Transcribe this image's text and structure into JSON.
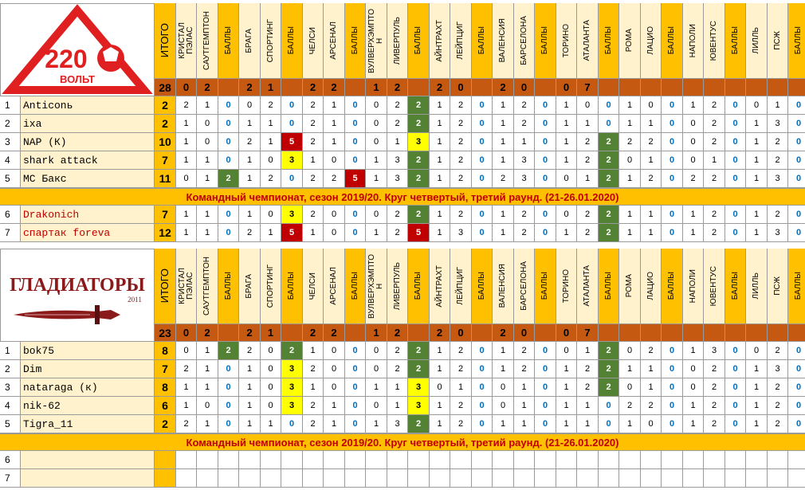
{
  "colors": {
    "orange": "#ffc000",
    "pale": "#fff2cc",
    "header_brown": "#c65911",
    "totals_text": "#000000",
    "green": "#548235",
    "yellow": "#ffff00",
    "red": "#c00000",
    "blue_text": "#0070c0",
    "banner_text": "#c00000"
  },
  "columns": [
    {
      "label": "ИТОГО",
      "type": "itogo"
    },
    {
      "label": "КРИСТАЛ\nПЭЛАС",
      "type": "team"
    },
    {
      "label": "САУТГЕМПТОН",
      "type": "team"
    },
    {
      "label": "БАЛЛЫ",
      "type": "points"
    },
    {
      "label": "БРАГА",
      "type": "team"
    },
    {
      "label": "СПОРТИНГ",
      "type": "team"
    },
    {
      "label": "БАЛЛЫ",
      "type": "points"
    },
    {
      "label": "ЧЕЛСИ",
      "type": "team"
    },
    {
      "label": "АРСЕНАЛ",
      "type": "team"
    },
    {
      "label": "БАЛЛЫ",
      "type": "points"
    },
    {
      "label": "ВУЛВЕРХЭМПТО\nН",
      "type": "team"
    },
    {
      "label": "ЛИВЕРПУЛЬ",
      "type": "team"
    },
    {
      "label": "БАЛЛЫ",
      "type": "points"
    },
    {
      "label": "АЙНТРАХТ",
      "type": "team"
    },
    {
      "label": "ЛЕЙПЦИГ",
      "type": "team"
    },
    {
      "label": "БАЛЛЫ",
      "type": "points"
    },
    {
      "label": "ВАЛЕНСИЯ",
      "type": "team"
    },
    {
      "label": "БАРСЕЛОНА",
      "type": "team"
    },
    {
      "label": "БАЛЛЫ",
      "type": "points"
    },
    {
      "label": "ТОРИНО",
      "type": "team"
    },
    {
      "label": "АТАЛАНТА",
      "type": "team"
    },
    {
      "label": "БАЛЛЫ",
      "type": "points"
    },
    {
      "label": "РОМА",
      "type": "team"
    },
    {
      "label": "ЛАЦИО",
      "type": "team"
    },
    {
      "label": "БАЛЛЫ",
      "type": "points"
    },
    {
      "label": "НАПОЛИ",
      "type": "team"
    },
    {
      "label": "ЮВЕНТУС",
      "type": "team"
    },
    {
      "label": "БАЛЛЫ",
      "type": "points"
    },
    {
      "label": "ЛИЛЛЬ",
      "type": "team"
    },
    {
      "label": "ПСЖ",
      "type": "team"
    },
    {
      "label": "БАЛЛЫ",
      "type": "points"
    }
  ],
  "banner_text": "Командный чемпионат, сезон 2019/20. Круг четвертый, третий раунд. (21-26.01.2020)",
  "sections": [
    {
      "logo": {
        "text": "220",
        "subtext": "ВОЛЬТ"
      },
      "totals": [
        "28",
        "0",
        "2",
        "",
        "2",
        "1",
        "",
        "2",
        "2",
        "",
        "1",
        "2",
        "",
        "2",
        "0",
        "",
        "2",
        "0",
        "",
        "0",
        "7",
        "",
        "",
        "",
        "",
        "",
        "",
        "",
        "",
        "",
        ""
      ],
      "players": [
        {
          "idx": "1",
          "name": "Anticonь",
          "name_color": "#000000",
          "cells": [
            "2",
            "2",
            "1",
            "0",
            "0",
            "2",
            "0",
            "2",
            "1",
            "0",
            "0",
            "2",
            "2",
            "1",
            "2",
            "0",
            "1",
            "2",
            "0",
            "1",
            "0",
            "0",
            "1",
            "0",
            "0",
            "1",
            "2",
            "0",
            "0",
            "1",
            "0"
          ],
          "hl": {
            "12": "green"
          }
        },
        {
          "idx": "2",
          "name": "ixa",
          "name_color": "#000000",
          "cells": [
            "2",
            "1",
            "0",
            "0",
            "1",
            "1",
            "0",
            "2",
            "1",
            "0",
            "0",
            "2",
            "2",
            "1",
            "2",
            "0",
            "1",
            "2",
            "0",
            "1",
            "1",
            "0",
            "1",
            "1",
            "0",
            "0",
            "2",
            "0",
            "1",
            "3",
            "0"
          ],
          "hl": {
            "12": "green"
          }
        },
        {
          "idx": "3",
          "name": "NAP (К)",
          "name_color": "#000000",
          "cells": [
            "10",
            "1",
            "0",
            "0",
            "2",
            "1",
            "5",
            "2",
            "1",
            "0",
            "0",
            "1",
            "3",
            "1",
            "2",
            "0",
            "1",
            "1",
            "0",
            "1",
            "2",
            "2",
            "2",
            "2",
            "0",
            "0",
            "2",
            "0",
            "1",
            "2",
            "0"
          ],
          "hl": {
            "6": "red",
            "12": "yellow",
            "21": "green"
          }
        },
        {
          "idx": "4",
          "name": "shark attack",
          "name_color": "#000000",
          "cells": [
            "7",
            "1",
            "1",
            "0",
            "1",
            "0",
            "3",
            "1",
            "0",
            "0",
            "1",
            "3",
            "2",
            "1",
            "2",
            "0",
            "1",
            "3",
            "0",
            "1",
            "2",
            "2",
            "0",
            "1",
            "0",
            "0",
            "1",
            "0",
            "1",
            "2",
            "0"
          ],
          "hl": {
            "6": "yellow",
            "12": "green",
            "21": "green"
          }
        },
        {
          "idx": "5",
          "name": "МС Бакс",
          "name_color": "#000000",
          "cells": [
            "11",
            "0",
            "1",
            "2",
            "1",
            "2",
            "0",
            "2",
            "2",
            "5",
            "1",
            "3",
            "2",
            "1",
            "2",
            "0",
            "2",
            "3",
            "0",
            "0",
            "1",
            "2",
            "1",
            "2",
            "0",
            "2",
            "2",
            "0",
            "1",
            "3",
            "0"
          ],
          "hl": {
            "3": "green",
            "9": "red",
            "12": "green",
            "21": "green"
          }
        }
      ],
      "after_banner": [
        {
          "idx": "6",
          "name": "Drakonich",
          "name_color": "#c00000",
          "cells": [
            "7",
            "1",
            "1",
            "0",
            "1",
            "0",
            "3",
            "2",
            "0",
            "0",
            "0",
            "2",
            "2",
            "1",
            "2",
            "0",
            "1",
            "2",
            "0",
            "0",
            "2",
            "2",
            "1",
            "1",
            "0",
            "1",
            "2",
            "0",
            "1",
            "2",
            "0"
          ],
          "hl": {
            "6": "yellow",
            "12": "green",
            "21": "green"
          }
        },
        {
          "idx": "7",
          "name": "спартак foreva",
          "name_color": "#c00000",
          "cells": [
            "12",
            "1",
            "1",
            "0",
            "2",
            "1",
            "5",
            "1",
            "0",
            "0",
            "1",
            "2",
            "5",
            "1",
            "3",
            "0",
            "1",
            "2",
            "0",
            "1",
            "2",
            "2",
            "1",
            "1",
            "0",
            "1",
            "2",
            "0",
            "1",
            "3",
            "0"
          ],
          "hl": {
            "6": "red",
            "12": "red",
            "21": "green"
          }
        }
      ]
    },
    {
      "logo": {
        "text": "ГЛАДИАТОРЫ",
        "subtext": "2011"
      },
      "totals": [
        "23",
        "0",
        "2",
        "",
        "2",
        "1",
        "",
        "2",
        "2",
        "",
        "1",
        "2",
        "",
        "2",
        "0",
        "",
        "2",
        "0",
        "",
        "0",
        "7",
        "",
        "",
        "",
        "",
        "",
        "",
        "",
        "",
        "",
        ""
      ],
      "players": [
        {
          "idx": "1",
          "name": "bok75",
          "name_color": "#000000",
          "cells": [
            "8",
            "0",
            "1",
            "2",
            "2",
            "0",
            "2",
            "1",
            "0",
            "0",
            "0",
            "2",
            "2",
            "1",
            "2",
            "0",
            "1",
            "2",
            "0",
            "0",
            "1",
            "2",
            "0",
            "2",
            "0",
            "1",
            "3",
            "0",
            "0",
            "2",
            "0"
          ],
          "hl": {
            "3": "green",
            "6": "green",
            "12": "green",
            "21": "green"
          }
        },
        {
          "idx": "2",
          "name": "Dim",
          "name_color": "#000000",
          "cells": [
            "7",
            "2",
            "1",
            "0",
            "1",
            "0",
            "3",
            "2",
            "0",
            "0",
            "0",
            "2",
            "2",
            "1",
            "2",
            "0",
            "1",
            "2",
            "0",
            "1",
            "2",
            "2",
            "1",
            "1",
            "0",
            "0",
            "2",
            "0",
            "1",
            "3",
            "0"
          ],
          "hl": {
            "6": "yellow",
            "12": "green",
            "21": "green"
          }
        },
        {
          "idx": "3",
          "name": "nataraga (к)",
          "name_color": "#000000",
          "cells": [
            "8",
            "1",
            "1",
            "0",
            "1",
            "0",
            "3",
            "1",
            "0",
            "0",
            "1",
            "1",
            "3",
            "0",
            "1",
            "0",
            "0",
            "1",
            "0",
            "1",
            "2",
            "2",
            "0",
            "1",
            "0",
            "0",
            "2",
            "0",
            "1",
            "2",
            "0"
          ],
          "hl": {
            "6": "yellow",
            "12": "yellow",
            "21": "green"
          }
        },
        {
          "idx": "4",
          "name": "nik-62",
          "name_color": "#000000",
          "cells": [
            "6",
            "1",
            "0",
            "0",
            "1",
            "0",
            "3",
            "2",
            "1",
            "0",
            "0",
            "1",
            "3",
            "1",
            "2",
            "0",
            "0",
            "1",
            "0",
            "1",
            "1",
            "0",
            "2",
            "2",
            "0",
            "1",
            "2",
            "0",
            "1",
            "2",
            "0"
          ],
          "hl": {
            "6": "yellow",
            "12": "yellow"
          }
        },
        {
          "idx": "5",
          "name": "Tigra_11",
          "name_color": "#000000",
          "cells": [
            "2",
            "2",
            "1",
            "0",
            "1",
            "1",
            "0",
            "2",
            "1",
            "0",
            "1",
            "3",
            "2",
            "1",
            "2",
            "0",
            "1",
            "1",
            "0",
            "1",
            "1",
            "0",
            "1",
            "0",
            "0",
            "1",
            "2",
            "0",
            "1",
            "2",
            "0"
          ],
          "hl": {
            "12": "green"
          }
        }
      ],
      "after_banner": [
        {
          "idx": "6",
          "name": "",
          "name_color": "#000000",
          "cells": [
            "",
            "",
            "",
            "",
            "",
            "",
            "",
            "",
            "",
            "",
            "",
            "",
            "",
            "",
            "",
            "",
            "",
            "",
            "",
            "",
            "",
            "",
            "",
            "",
            "",
            "",
            "",
            "",
            "",
            "",
            ""
          ],
          "hl": {}
        },
        {
          "idx": "7",
          "name": "",
          "name_color": "#000000",
          "cells": [
            "",
            "",
            "",
            "",
            "",
            "",
            "",
            "",
            "",
            "",
            "",
            "",
            "",
            "",
            "",
            "",
            "",
            "",
            "",
            "",
            "",
            "",
            "",
            "",
            "",
            "",
            "",
            "",
            "",
            "",
            ""
          ],
          "hl": {}
        }
      ]
    }
  ]
}
